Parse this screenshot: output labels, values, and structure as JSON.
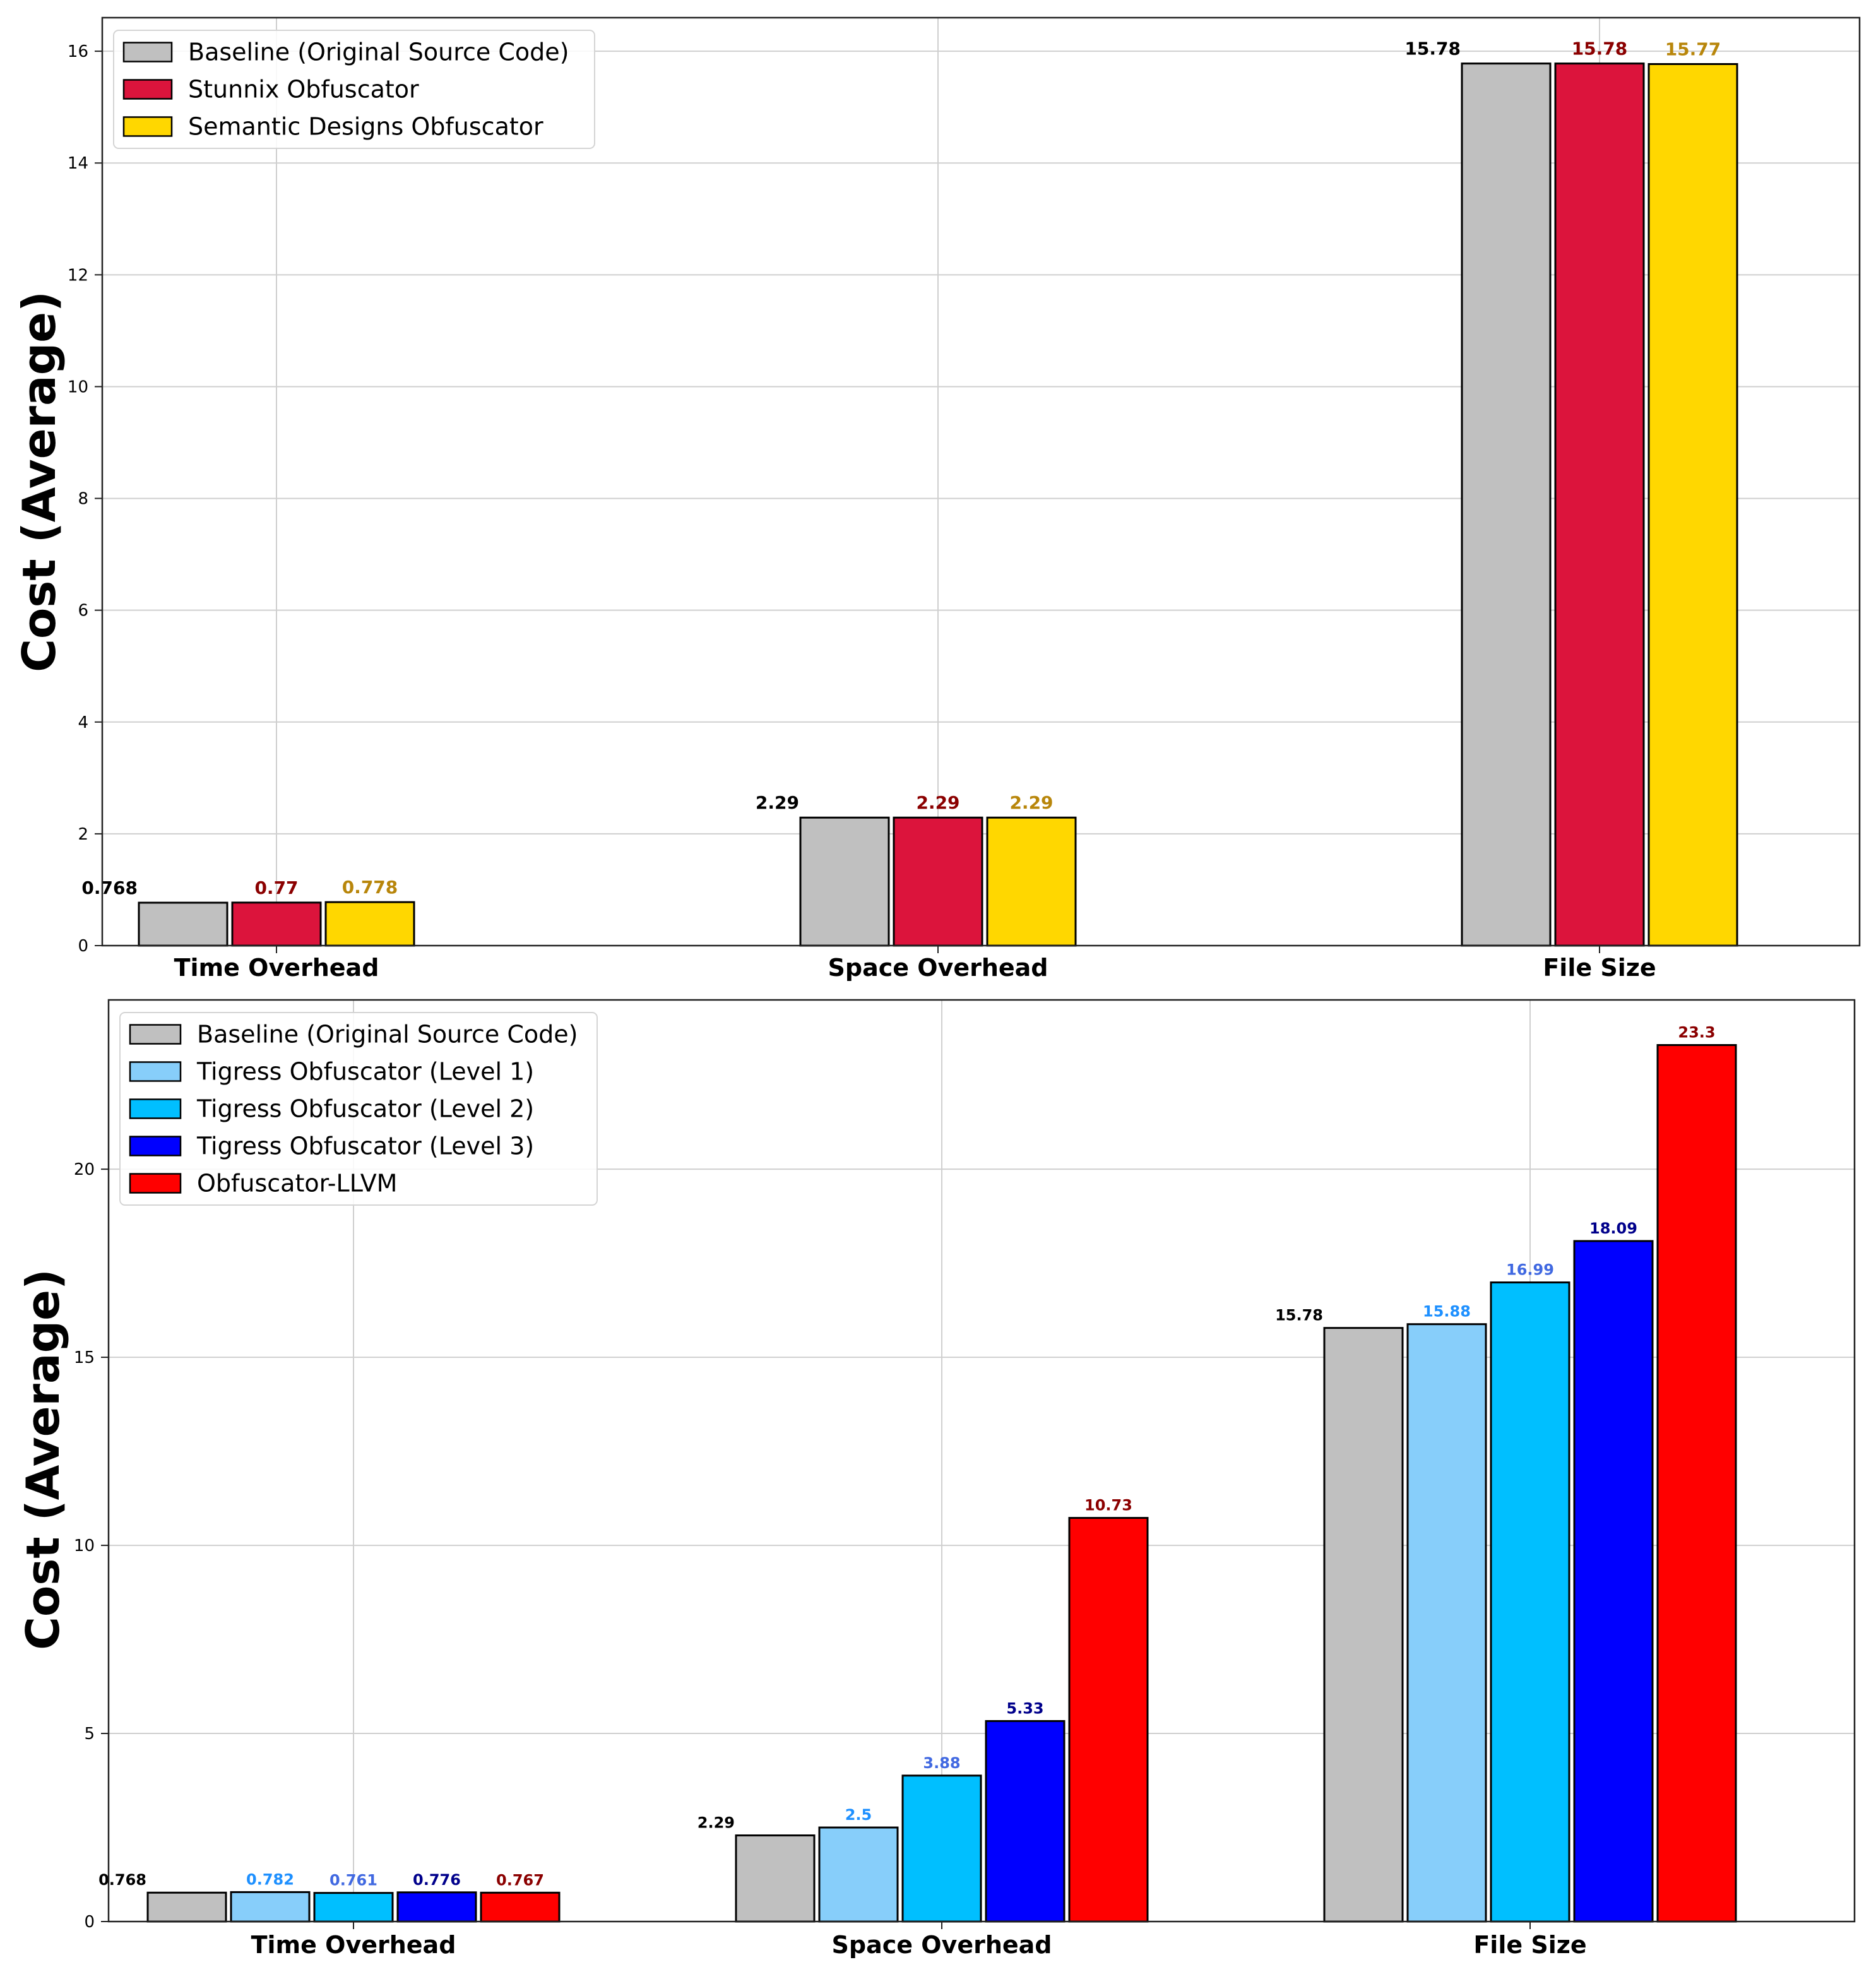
{
  "chart_data": [
    {
      "type": "bar",
      "ylabel": "Cost (Average)",
      "xlabel": "",
      "ylim": [
        0,
        16.6
      ],
      "yticks": [
        0,
        2,
        4,
        6,
        8,
        10,
        12,
        14,
        16
      ],
      "ytick_labels": [
        "0",
        "2",
        "4",
        "6",
        "8",
        "10",
        "12",
        "14",
        "16"
      ],
      "grid": true,
      "legend_position": "top-left",
      "categories": [
        "Time Overhead",
        "Space Overhead",
        "File Size"
      ],
      "series": [
        {
          "name": "Baseline (Original Source Code)",
          "color": "#c0c0c0",
          "label_color": "#000000",
          "values": [
            0.768,
            2.29,
            15.78
          ],
          "labels": [
            "0.768",
            "2.29",
            "15.78"
          ]
        },
        {
          "name": "Stunnix Obfuscator",
          "color": "#dc143c",
          "label_color": "#8b0000",
          "values": [
            0.77,
            2.29,
            15.78
          ],
          "labels": [
            "0.77",
            "2.29",
            "15.78"
          ]
        },
        {
          "name": "Semantic Designs Obfuscator",
          "color": "#ffd700",
          "label_color": "#b8860b",
          "values": [
            0.778,
            2.29,
            15.77
          ],
          "labels": [
            "0.778",
            "2.29",
            "15.77"
          ]
        }
      ]
    },
    {
      "type": "bar",
      "ylabel": "Cost (Average)",
      "xlabel": "",
      "ylim": [
        0,
        24.5
      ],
      "yticks": [
        0,
        5,
        10,
        15,
        20
      ],
      "ytick_labels": [
        "0",
        "5",
        "10",
        "15",
        "20"
      ],
      "grid": true,
      "legend_position": "top-left",
      "categories": [
        "Time Overhead",
        "Space Overhead",
        "File Size"
      ],
      "series": [
        {
          "name": "Baseline (Original Source Code)",
          "color": "#c0c0c0",
          "label_color": "#000000",
          "values": [
            0.768,
            2.29,
            15.78
          ],
          "labels": [
            "0.768",
            "2.29",
            "15.78"
          ]
        },
        {
          "name": "Tigress Obfuscator (Level 1)",
          "color": "#87cefa",
          "label_color": "#1e90ff",
          "values": [
            0.782,
            2.5,
            15.88
          ],
          "labels": [
            "0.782",
            "2.5",
            "15.88"
          ]
        },
        {
          "name": "Tigress Obfuscator (Level 2)",
          "color": "#00bfff",
          "label_color": "#4169e1",
          "values": [
            0.761,
            3.88,
            16.99
          ],
          "labels": [
            "0.761",
            "3.88",
            "16.99"
          ]
        },
        {
          "name": "Tigress Obfuscator (Level 3)",
          "color": "#0000ff",
          "label_color": "#00008b",
          "values": [
            0.776,
            5.33,
            18.09
          ],
          "labels": [
            "0.776",
            "5.33",
            "18.09"
          ]
        },
        {
          "name": "Obfuscator-LLVM",
          "color": "#ff0000",
          "label_color": "#8b0000",
          "values": [
            0.767,
            10.73,
            23.3
          ],
          "labels": [
            "0.767",
            "10.73",
            "23.3"
          ]
        }
      ]
    }
  ]
}
